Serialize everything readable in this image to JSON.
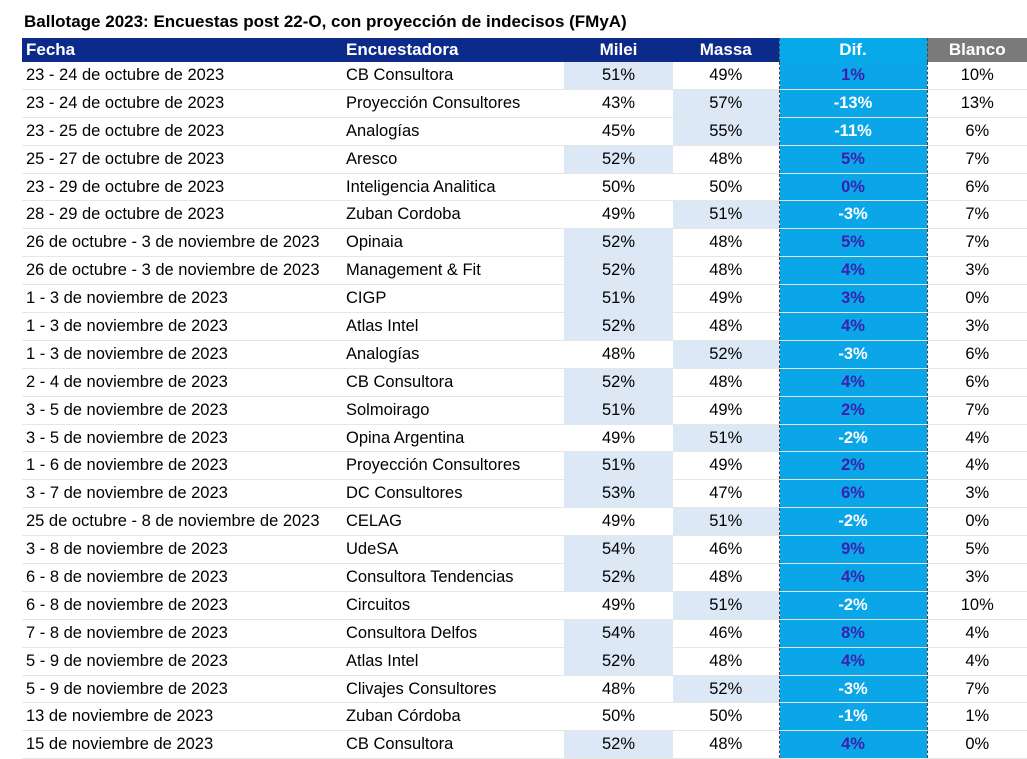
{
  "title": "Ballotage 2023: Encuestas post 22-O, con proyección de indecisos (FMyA)",
  "headers": {
    "fecha": "Fecha",
    "encuestadora": "Encuestadora",
    "milei": "Milei",
    "massa": "Massa",
    "dif": "Dif.",
    "blanco": "Blanco"
  },
  "colors": {
    "header_bg": "#0b2a8a",
    "dif_bg": "#0aa6e8",
    "blanco_header_bg": "#7a7a7a",
    "lead_highlight": "#dce8f6",
    "dif_positive_text": "#3a1fb0",
    "dif_negative_text": "#ffffff"
  },
  "rows": [
    {
      "fecha": "23 - 24 de octubre de 2023",
      "encuestadora": "CB Consultora",
      "milei": "51%",
      "massa": "49%",
      "dif": "1%",
      "blanco": "10%"
    },
    {
      "fecha": "23 - 24 de octubre de 2023",
      "encuestadora": "Proyección Consultores",
      "milei": "43%",
      "massa": "57%",
      "dif": "-13%",
      "blanco": "13%"
    },
    {
      "fecha": "23 - 25 de octubre de 2023",
      "encuestadora": "Analogías",
      "milei": "45%",
      "massa": "55%",
      "dif": "-11%",
      "blanco": "6%"
    },
    {
      "fecha": "25 - 27 de octubre de 2023",
      "encuestadora": "Aresco",
      "milei": "52%",
      "massa": "48%",
      "dif": "5%",
      "blanco": "7%"
    },
    {
      "fecha": "23 - 29 de octubre de 2023",
      "encuestadora": "Inteligencia Analitica",
      "milei": "50%",
      "massa": "50%",
      "dif": "0%",
      "blanco": "6%"
    },
    {
      "fecha": "28 - 29 de octubre de 2023",
      "encuestadora": "Zuban Cordoba",
      "milei": "49%",
      "massa": "51%",
      "dif": "-3%",
      "blanco": "7%"
    },
    {
      "fecha": "26 de octubre - 3 de noviembre de 2023",
      "encuestadora": "Opinaia",
      "milei": "52%",
      "massa": "48%",
      "dif": "5%",
      "blanco": "7%"
    },
    {
      "fecha": "26 de octubre - 3 de noviembre de 2023",
      "encuestadora": "Management & Fit",
      "milei": "52%",
      "massa": "48%",
      "dif": "4%",
      "blanco": "3%"
    },
    {
      "fecha": "1 - 3 de noviembre de 2023",
      "encuestadora": "CIGP",
      "milei": "51%",
      "massa": "49%",
      "dif": "3%",
      "blanco": "0%"
    },
    {
      "fecha": "1 - 3 de noviembre de 2023",
      "encuestadora": "Atlas Intel",
      "milei": "52%",
      "massa": "48%",
      "dif": "4%",
      "blanco": "3%"
    },
    {
      "fecha": "1 - 3 de noviembre de 2023",
      "encuestadora": "Analogías",
      "milei": "48%",
      "massa": "52%",
      "dif": "-3%",
      "blanco": "6%"
    },
    {
      "fecha": "2 - 4 de noviembre de 2023",
      "encuestadora": "CB Consultora",
      "milei": "52%",
      "massa": "48%",
      "dif": "4%",
      "blanco": "6%"
    },
    {
      "fecha": "3 - 5 de noviembre de 2023",
      "encuestadora": "Solmoirago",
      "milei": "51%",
      "massa": "49%",
      "dif": "2%",
      "blanco": "7%"
    },
    {
      "fecha": "3 - 5 de noviembre de 2023",
      "encuestadora": "Opina Argentina",
      "milei": "49%",
      "massa": "51%",
      "dif": "-2%",
      "blanco": "4%"
    },
    {
      "fecha": "1 - 6 de noviembre de 2023",
      "encuestadora": "Proyección Consultores",
      "milei": "51%",
      "massa": "49%",
      "dif": "2%",
      "blanco": "4%"
    },
    {
      "fecha": "3 - 7 de noviembre de 2023",
      "encuestadora": "DC Consultores",
      "milei": "53%",
      "massa": "47%",
      "dif": "6%",
      "blanco": "3%"
    },
    {
      "fecha": "25 de octubre - 8 de noviembre de 2023",
      "encuestadora": "CELAG",
      "milei": "49%",
      "massa": "51%",
      "dif": "-2%",
      "blanco": "0%"
    },
    {
      "fecha": "3 - 8 de noviembre de 2023",
      "encuestadora": "UdeSA",
      "milei": "54%",
      "massa": "46%",
      "dif": "9%",
      "blanco": "5%"
    },
    {
      "fecha": "6 - 8 de noviembre de 2023",
      "encuestadora": "Consultora Tendencias",
      "milei": "52%",
      "massa": "48%",
      "dif": "4%",
      "blanco": "3%"
    },
    {
      "fecha": "6 - 8 de noviembre de 2023",
      "encuestadora": "Circuitos",
      "milei": "49%",
      "massa": "51%",
      "dif": "-2%",
      "blanco": "10%"
    },
    {
      "fecha": "7 - 8 de noviembre de 2023",
      "encuestadora": "Consultora Delfos",
      "milei": "54%",
      "massa": "46%",
      "dif": "8%",
      "blanco": "4%"
    },
    {
      "fecha": "5 - 9 de noviembre de 2023",
      "encuestadora": "Atlas Intel",
      "milei": "52%",
      "massa": "48%",
      "dif": "4%",
      "blanco": "4%"
    },
    {
      "fecha": "5 - 9 de noviembre de 2023",
      "encuestadora": "Clivajes Consultores",
      "milei": "48%",
      "massa": "52%",
      "dif": "-3%",
      "blanco": "7%"
    },
    {
      "fecha": "13 de noviembre de 2023",
      "encuestadora": "Zuban Córdoba",
      "milei": "50%",
      "massa": "50%",
      "dif": "-1%",
      "blanco": "1%"
    },
    {
      "fecha": "15 de noviembre de 2023",
      "encuestadora": "CB Consultora",
      "milei": "52%",
      "massa": "48%",
      "dif": "4%",
      "blanco": "0%"
    }
  ]
}
